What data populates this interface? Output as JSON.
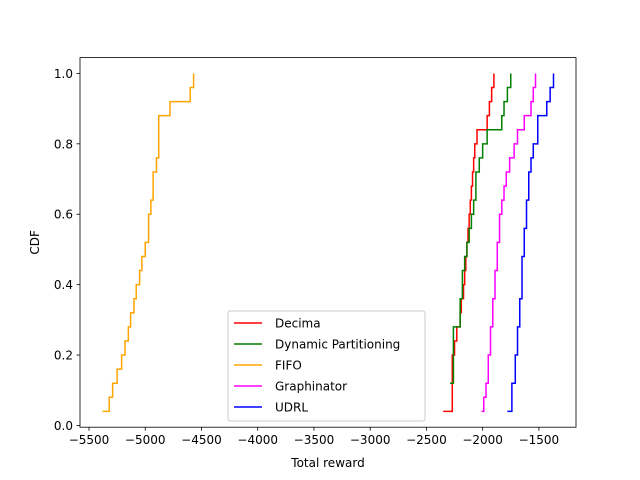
{
  "chart_data": {
    "type": "line",
    "title": "",
    "xlabel": "Total reward",
    "ylabel": "CDF",
    "xlim": [
      -5580,
      -1170
    ],
    "ylim": [
      -0.005,
      1.045
    ],
    "xticks": [
      -5500,
      -5000,
      -4500,
      -4000,
      -3500,
      -3000,
      -2500,
      -2000,
      -1500
    ],
    "xtick_labels": [
      "−5500",
      "−5000",
      "−4500",
      "−4000",
      "−3500",
      "−3000",
      "−2500",
      "−2000",
      "−1500"
    ],
    "yticks": [
      0.0,
      0.2,
      0.4,
      0.6,
      0.8,
      1.0
    ],
    "ytick_labels": [
      "0.0",
      "0.2",
      "0.4",
      "0.6",
      "0.8",
      "1.0"
    ],
    "grid": false,
    "legend_position": "lower-center",
    "series": [
      {
        "name": "Decima",
        "color": "#ff0000",
        "x": [
          -2350,
          -2270,
          -2250,
          -2230,
          -2200,
          -2190,
          -2170,
          -2160,
          -2150,
          -2140,
          -2130,
          -2120,
          -2110,
          -2100,
          -2090,
          -2080,
          -2070,
          -2050,
          -2040,
          -2030,
          -2010,
          -1990,
          -1970,
          -1960,
          -1950,
          -1940,
          -1920,
          -1910,
          -1900
        ],
        "y": [
          0.04,
          0.2,
          0.24,
          0.28,
          0.32,
          0.36,
          0.4,
          0.44,
          0.48,
          0.52,
          0.56,
          0.6,
          0.64,
          0.68,
          0.72,
          0.76,
          0.8,
          0.84,
          0.84,
          0.84,
          0.84,
          0.84,
          0.84,
          0.88,
          0.88,
          0.92,
          0.96,
          0.96,
          1.0
        ]
      },
      {
        "name": "Dynamic Partitioning",
        "color": "#008000",
        "x": [
          -2290,
          -2260,
          -2220,
          -2200,
          -2180,
          -2160,
          -2140,
          -2120,
          -2100,
          -2080,
          -2060,
          -2030,
          -2000,
          -1960,
          -1860,
          -1830,
          -1810,
          -1780,
          -1750
        ],
        "y": [
          0.12,
          0.28,
          0.28,
          0.36,
          0.44,
          0.48,
          0.52,
          0.56,
          0.6,
          0.64,
          0.72,
          0.76,
          0.8,
          0.84,
          0.84,
          0.88,
          0.92,
          0.96,
          1.0
        ]
      },
      {
        "name": "FIFO",
        "color": "#ffa500",
        "x": [
          -5380,
          -5350,
          -5320,
          -5290,
          -5250,
          -5210,
          -5180,
          -5150,
          -5130,
          -5100,
          -5080,
          -5050,
          -5030,
          -5000,
          -4970,
          -4950,
          -4930,
          -4900,
          -4880,
          -4780,
          -4650,
          -4600,
          -4570
        ],
        "y": [
          0.04,
          0.04,
          0.08,
          0.12,
          0.16,
          0.2,
          0.24,
          0.28,
          0.32,
          0.36,
          0.4,
          0.44,
          0.48,
          0.52,
          0.6,
          0.64,
          0.72,
          0.76,
          0.88,
          0.92,
          0.92,
          0.96,
          1.0
        ]
      },
      {
        "name": "Graphinator",
        "color": "#ff00ff",
        "x": [
          -2010,
          -1990,
          -1970,
          -1950,
          -1930,
          -1910,
          -1890,
          -1870,
          -1850,
          -1830,
          -1810,
          -1790,
          -1760,
          -1720,
          -1690,
          -1660,
          -1630,
          -1600,
          -1570,
          -1550,
          -1530
        ],
        "y": [
          0.04,
          0.08,
          0.12,
          0.2,
          0.28,
          0.36,
          0.44,
          0.52,
          0.6,
          0.64,
          0.68,
          0.72,
          0.76,
          0.8,
          0.84,
          0.84,
          0.88,
          0.88,
          0.92,
          0.96,
          1.0
        ]
      },
      {
        "name": "UDRL",
        "color": "#0000ff",
        "x": [
          -1780,
          -1740,
          -1710,
          -1690,
          -1670,
          -1650,
          -1630,
          -1610,
          -1590,
          -1570,
          -1550,
          -1510,
          -1470,
          -1430,
          -1400,
          -1370
        ],
        "y": [
          0.04,
          0.12,
          0.2,
          0.28,
          0.36,
          0.48,
          0.56,
          0.64,
          0.72,
          0.76,
          0.8,
          0.88,
          0.88,
          0.92,
          0.96,
          1.0
        ]
      }
    ]
  }
}
